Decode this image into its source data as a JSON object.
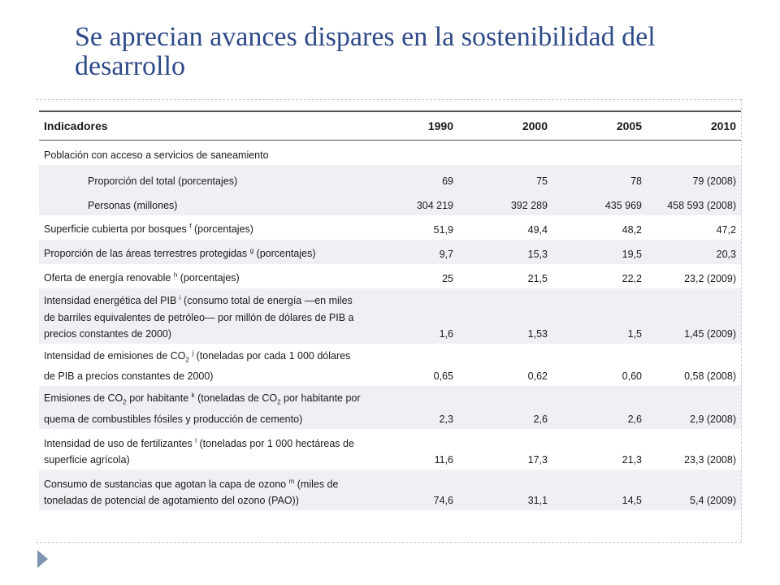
{
  "slide": {
    "title": "Se aprecian avances dispares en la sostenibilidad del desarrollo"
  },
  "table": {
    "headers": [
      "Indicadores",
      "1990",
      "2000",
      "2005",
      "2010"
    ],
    "rows": [
      {
        "label": "Población con acceso a servicios de saneamiento",
        "values": [
          "",
          "",
          "",
          ""
        ]
      },
      {
        "label": "Proporción del total (porcentajes)",
        "values": [
          "69",
          "75",
          "78",
          "79 (2008)"
        ]
      },
      {
        "label": "Personas (millones)",
        "values": [
          "304 219",
          "392 289",
          "435 969",
          "458 593 (2008)"
        ]
      },
      {
        "label_pre": "Superficie cubierta por bosques ",
        "mark": "f",
        "label_post": " (porcentajes)",
        "values": [
          "51,9",
          "49,4",
          "48,2",
          "47,2"
        ]
      },
      {
        "label_pre": "Proporción de las áreas terrestres protegidas ",
        "mark": "g",
        "label_post": " (porcentajes)",
        "values": [
          "9,7",
          "15,3",
          "19,5",
          "20,3"
        ]
      },
      {
        "label_pre": "Oferta de energía renovable ",
        "mark": "h",
        "label_post": " (porcentajes)",
        "values": [
          "25",
          "21,5",
          "22,2",
          "23,2 (2009)"
        ]
      },
      {
        "label_pre": "Intensidad energética del PIB ",
        "mark": "i",
        "label_post": " (consumo total de energía —en miles de barriles equivalentes de petróleo— por millón de dólares de PIB a precios constantes de 2000)",
        "values": [
          "1,6",
          "1,53",
          "1,5",
          "1,45 (2009)"
        ]
      },
      {
        "label_a": "Intensidad de emisiones de CO",
        "sub": "2",
        "mark": "j",
        "label_b": " (toneladas por cada 1 000 dólares de PIB a precios constantes de 2000)",
        "values": [
          "0,65",
          "0,62",
          "0,60",
          "0,58 (2008)"
        ]
      },
      {
        "label_a": "Emisiones de CO",
        "sub": "2",
        "label_b": " por habitante ",
        "mark": "k",
        "label_c": " (toneladas de CO",
        "sub2": "2",
        "label_d": " por habitante por quema de combustibles fósiles y producción de cemento)",
        "values": [
          "2,3",
          "2,6",
          "2,6",
          "2,9 (2008)"
        ]
      },
      {
        "label_pre": "Intensidad de uso de fertilizantes ",
        "mark": "l",
        "label_post": " (toneladas por 1 000 hectáreas de superficie agrícola)",
        "values": [
          "11,6",
          "17,3",
          "21,3",
          "23,3 (2008)"
        ]
      },
      {
        "label_pre": "Consumo de sustancias que agotan la capa de ozono ",
        "mark": "m",
        "label_post": " (miles de toneladas de potencial de agotamiento del ozono (PAO))",
        "values": [
          "74,6",
          "31,1",
          "14,5",
          "5,4 (2009)"
        ]
      }
    ]
  }
}
